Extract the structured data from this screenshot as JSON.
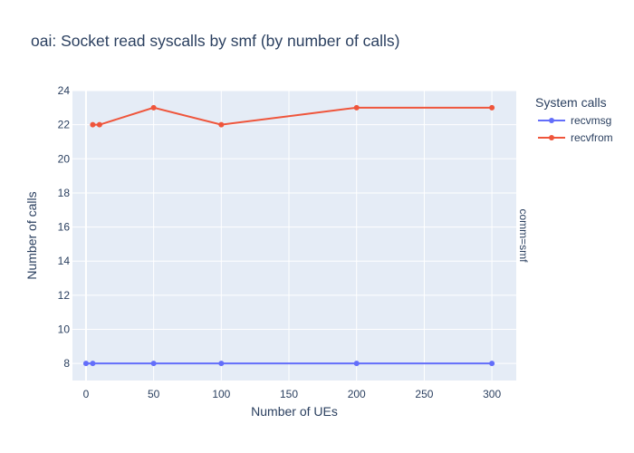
{
  "chart_data": {
    "type": "line",
    "title": "oai: Socket read syscalls by smf (by number of calls)",
    "xlabel": "Number of UEs",
    "ylabel": "Number of calls",
    "facet_label": "comm=smf",
    "legend_title": "System calls",
    "legend_position": "top-right-outside",
    "xlim": [
      -10,
      318
    ],
    "ylim": [
      7,
      24
    ],
    "x_ticks": [
      0,
      50,
      100,
      150,
      200,
      250,
      300
    ],
    "y_ticks": [
      8,
      10,
      12,
      14,
      16,
      18,
      20,
      22,
      24
    ],
    "grid": true,
    "series": [
      {
        "name": "recvmsg",
        "color": "#636efa",
        "x": [
          0,
          5,
          50,
          100,
          200,
          300
        ],
        "y": [
          8,
          8,
          8,
          8,
          8,
          8
        ]
      },
      {
        "name": "recvfrom",
        "color": "#ef553b",
        "x": [
          5,
          10,
          50,
          100,
          200,
          300
        ],
        "y": [
          22,
          22,
          23,
          22,
          23,
          23
        ]
      }
    ]
  }
}
